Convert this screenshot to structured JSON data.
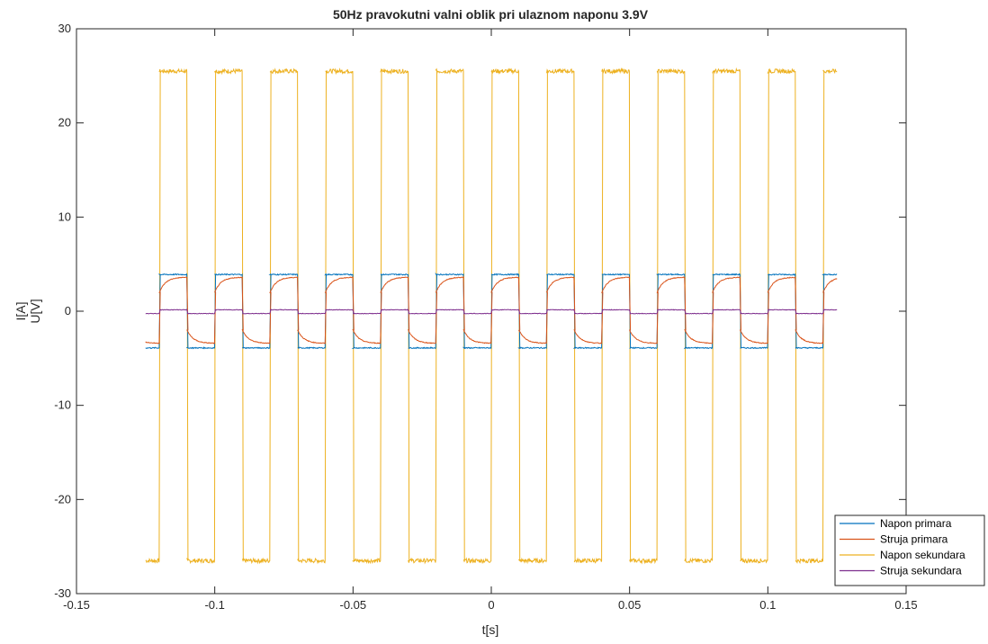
{
  "chart_data": {
    "type": "line",
    "title": "50Hz pravokutni valni oblik pri ulaznom naponu 3.9V",
    "xlabel": "t[s]",
    "ylabel_lines": [
      "I[A]",
      "U[V]"
    ],
    "xlim": [
      -0.15,
      0.15
    ],
    "ylim": [
      -30,
      30
    ],
    "xticks": [
      -0.15,
      -0.1,
      -0.05,
      0,
      0.05,
      0.1,
      0.15
    ],
    "xtick_labels": [
      "-0.15",
      "-0.1",
      "-0.05",
      "0",
      "0.05",
      "0.1",
      "0.15"
    ],
    "yticks": [
      -30,
      -20,
      -10,
      0,
      10,
      20,
      30
    ],
    "ytick_labels": [
      "-30",
      "-20",
      "-10",
      "0",
      "10",
      "20",
      "30"
    ],
    "grid": false,
    "legend_position": "bottom-right",
    "square_wave": {
      "frequency_hz": 50,
      "t_start": -0.125,
      "t_end": 0.125,
      "first_high_edge": -0.12,
      "half_period": 0.01
    },
    "series": [
      {
        "name": "Napon primara",
        "color": "#0072BD",
        "waveform": "square",
        "high": 3.9,
        "low": -3.9
      },
      {
        "name": "Struja primara",
        "color": "#D95319",
        "waveform": "square_rising",
        "start_high": 2.0,
        "end_high": 3.6,
        "start_low": -2.0,
        "end_low": -3.4
      },
      {
        "name": "Napon sekundara",
        "color": "#EDB120",
        "waveform": "square",
        "high": 25.5,
        "low": -26.5
      },
      {
        "name": "Struja sekundara",
        "color": "#7E2F8E",
        "waveform": "square",
        "high": 0.15,
        "low": -0.25
      }
    ]
  }
}
